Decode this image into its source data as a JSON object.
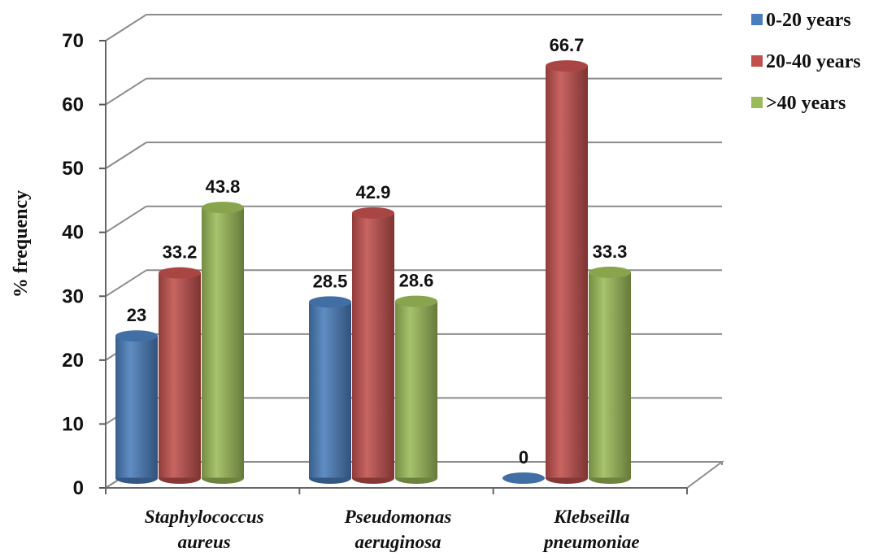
{
  "chart_data": {
    "type": "bar",
    "title": "",
    "xlabel": "",
    "ylabel": "% frequency",
    "categories": [
      [
        "Staphylococcus",
        "aureus"
      ],
      [
        "Pseudomonas",
        "aeruginosa"
      ],
      [
        "Klebseilla",
        "pneumoniae"
      ]
    ],
    "series": [
      {
        "name": "0-20 years",
        "color": "#4a7ebb",
        "values": [
          23,
          28.5,
          0
        ]
      },
      {
        "name": "20-40 years",
        "color": "#c0504d",
        "values": [
          33.2,
          42.9,
          66.7
        ]
      },
      {
        "name": ">40 years",
        "color": "#9bbb59",
        "values": [
          43.8,
          28.6,
          33.3
        ]
      }
    ],
    "data_labels": [
      [
        "23",
        "28.5",
        "0"
      ],
      [
        "33.2",
        "42.9",
        "66.7"
      ],
      [
        "43.8",
        "28.6",
        "33.3"
      ]
    ],
    "yticks": [
      "0",
      "10",
      "20",
      "30",
      "40",
      "50",
      "60",
      "70"
    ],
    "ylim": [
      0,
      70
    ],
    "grid": true,
    "legend": "top-right",
    "style": "3d-cylinder"
  }
}
